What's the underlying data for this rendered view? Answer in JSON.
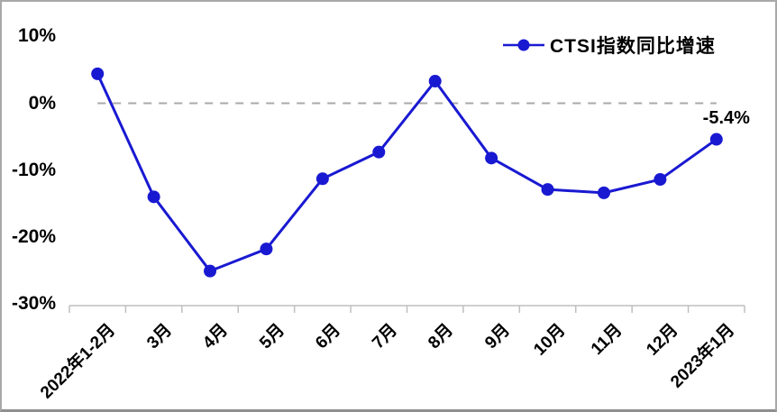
{
  "colors": {
    "line": "#1919d2",
    "marker": "#1919d2",
    "zero_line": "#a9a9a9",
    "axis_line": "#bfbfbf",
    "text": "#000000",
    "background": "#ffffff"
  },
  "legend": {
    "label": "CTSI指数同比增速"
  },
  "chart_data": {
    "type": "line",
    "title": "",
    "xlabel": "",
    "ylabel": "",
    "categories": [
      "2022年1-2月",
      "3月",
      "4月",
      "5月",
      "6月",
      "7月",
      "8月",
      "9月",
      "10月",
      "11月",
      "12月",
      "2023年1月"
    ],
    "series": [
      {
        "name": "CTSI指数同比增速",
        "values": [
          4.4,
          -14.0,
          -25.1,
          -21.8,
          -11.3,
          -7.3,
          3.3,
          -8.2,
          -12.9,
          -13.4,
          -11.4,
          -5.4
        ]
      }
    ],
    "ylim": [
      -30,
      10
    ],
    "yticks": [
      10,
      0,
      -10,
      -20,
      -30
    ],
    "ytick_labels": [
      "10%",
      "0%",
      "-10%",
      "-20%",
      "-30%"
    ],
    "grid": "none",
    "zero_line_style": "dashed",
    "legend_position": "top-right",
    "annotation": {
      "text": "-5.4%",
      "point_index": 11
    }
  }
}
